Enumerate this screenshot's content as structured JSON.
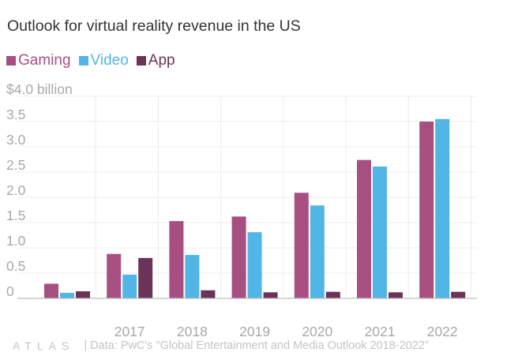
{
  "title": "Outlook for virtual reality revenue in the US",
  "footer": {
    "logo_text": "ATLAS",
    "source": "| Data: PwC's \"Global Entertainment and Media Outlook 2018-2022\""
  },
  "colors": {
    "gaming": "#a84f82",
    "video": "#51b6e6",
    "app": "#6b3357",
    "grid": "#ececec",
    "axis_text": "#a8a8a8"
  },
  "chart_data": {
    "type": "bar",
    "title": "Outlook for virtual reality revenue in the US",
    "categories": [
      "",
      "2017",
      "2018",
      "2019",
      "2020",
      "2021",
      "2022"
    ],
    "series": [
      {
        "name": "Gaming",
        "values": [
          0.29,
          0.88,
          1.53,
          1.62,
          2.09,
          2.74,
          3.5
        ]
      },
      {
        "name": "Video",
        "values": [
          0.11,
          0.47,
          0.86,
          1.31,
          1.84,
          2.61,
          3.55
        ]
      },
      {
        "name": "App",
        "values": [
          0.14,
          0.8,
          0.16,
          0.12,
          0.13,
          0.12,
          0.13
        ]
      }
    ],
    "ylim": [
      0,
      4
    ],
    "yticks": [
      {
        "value": 0,
        "label": "0"
      },
      {
        "value": 0.5,
        "label": "0.5"
      },
      {
        "value": 1.0,
        "label": "1.0"
      },
      {
        "value": 1.5,
        "label": "1.5"
      },
      {
        "value": 2.0,
        "label": "2.0"
      },
      {
        "value": 2.5,
        "label": "2.5"
      },
      {
        "value": 3.0,
        "label": "3.0"
      },
      {
        "value": 3.5,
        "label": "3.5"
      },
      {
        "value": 4.0,
        "label": "$4.0 billion"
      }
    ],
    "xlabel": "",
    "ylabel": "",
    "grid": true,
    "legend": "top-left"
  }
}
